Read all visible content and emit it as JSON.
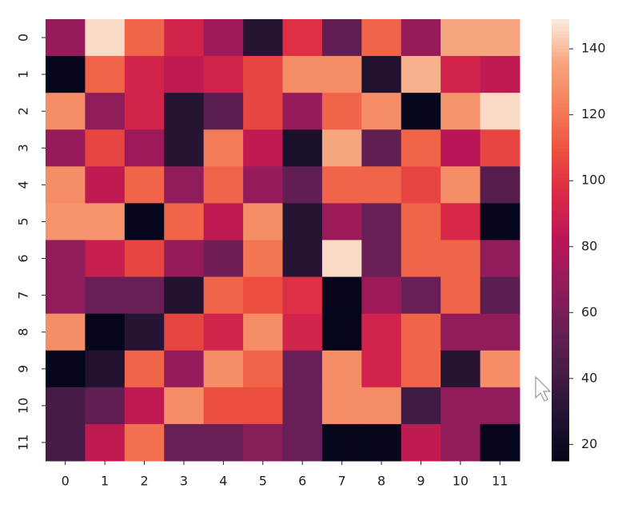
{
  "chart_data": {
    "type": "heatmap",
    "x_categories": [
      "0",
      "1",
      "2",
      "3",
      "4",
      "5",
      "6",
      "7",
      "8",
      "9",
      "10",
      "11"
    ],
    "y_categories": [
      "0",
      "1",
      "2",
      "3",
      "4",
      "5",
      "6",
      "7",
      "8",
      "9",
      "10",
      "11"
    ],
    "values": [
      [
        70,
        146,
        115,
        92,
        72,
        30,
        98,
        52,
        115,
        70,
        136,
        136
      ],
      [
        16,
        115,
        92,
        85,
        92,
        105,
        128,
        128,
        28,
        138,
        92,
        85
      ],
      [
        128,
        68,
        92,
        30,
        50,
        105,
        70,
        115,
        128,
        16,
        130,
        146
      ],
      [
        70,
        105,
        72,
        30,
        122,
        85,
        25,
        136,
        52,
        115,
        82,
        105
      ],
      [
        128,
        85,
        115,
        68,
        115,
        70,
        52,
        115,
        115,
        105,
        128,
        48
      ],
      [
        130,
        130,
        16,
        115,
        85,
        128,
        30,
        72,
        55,
        115,
        95,
        16
      ],
      [
        68,
        88,
        105,
        70,
        58,
        120,
        30,
        146,
        55,
        115,
        115,
        68
      ],
      [
        68,
        55,
        55,
        28,
        115,
        108,
        98,
        16,
        72,
        55,
        115,
        50
      ],
      [
        128,
        16,
        30,
        105,
        92,
        128,
        92,
        16,
        92,
        115,
        68,
        68
      ],
      [
        16,
        28,
        115,
        70,
        128,
        115,
        55,
        128,
        92,
        115,
        30,
        128
      ],
      [
        42,
        52,
        85,
        128,
        108,
        108,
        55,
        128,
        128,
        40,
        68,
        68
      ],
      [
        42,
        85,
        118,
        55,
        55,
        65,
        55,
        16,
        16,
        85,
        68,
        16
      ]
    ],
    "zlim": [
      15,
      149
    ],
    "zticks": [
      20,
      40,
      60,
      80,
      100,
      120,
      140
    ],
    "colorscale": [
      "#03051a",
      "#221331",
      "#451c47",
      "#691f55",
      "#921c5b",
      "#b91657",
      "#d92847",
      "#ed503e",
      "#f47d57",
      "#f6a47c",
      "#faebdd"
    ]
  }
}
